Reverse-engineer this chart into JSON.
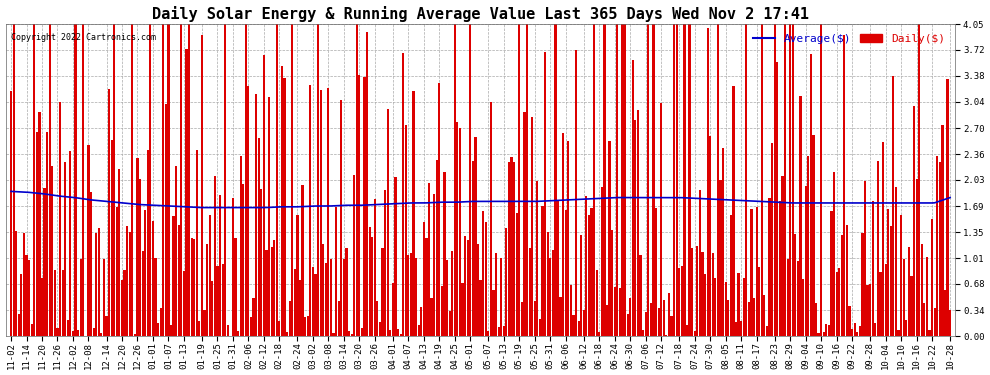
{
  "title": "Daily Solar Energy & Running Average Value Last 365 Days Wed Nov 2 17:41",
  "copyright": "Copyright 2022 Cartronics.com",
  "legend_avg": "Average($)",
  "legend_daily": "Daily($)",
  "avg_color": "#0000cc",
  "daily_color": "#dd0000",
  "bg_color": "#ffffff",
  "grid_color": "#aaaaaa",
  "ylim": [
    0.0,
    4.05
  ],
  "yticks": [
    0.0,
    0.34,
    0.68,
    1.01,
    1.35,
    1.69,
    2.03,
    2.36,
    2.7,
    3.04,
    3.38,
    3.72,
    4.05
  ],
  "title_fontsize": 11,
  "tick_fontsize": 6.5,
  "n_bars": 365,
  "date_labels": [
    "11-02",
    "11-14",
    "11-20",
    "11-26",
    "12-02",
    "12-08",
    "12-14",
    "12-20",
    "12-26",
    "01-01",
    "01-07",
    "01-13",
    "01-19",
    "01-25",
    "01-31",
    "02-06",
    "02-12",
    "02-18",
    "02-24",
    "03-02",
    "03-08",
    "03-14",
    "03-20",
    "03-26",
    "04-01",
    "04-07",
    "04-13",
    "04-19",
    "04-25",
    "05-01",
    "05-07",
    "05-13",
    "05-19",
    "05-25",
    "05-31",
    "06-06",
    "06-12",
    "06-18",
    "06-24",
    "06-30",
    "07-06",
    "07-12",
    "07-18",
    "07-24",
    "07-30",
    "08-05",
    "08-11",
    "08-17",
    "08-23",
    "08-29",
    "09-04",
    "09-10",
    "09-16",
    "09-22",
    "09-28",
    "10-04",
    "10-10",
    "10-16",
    "10-22",
    "10-28"
  ],
  "avg_line_points": [
    1.88,
    1.87,
    1.85,
    1.82,
    1.8,
    1.77,
    1.75,
    1.73,
    1.71,
    1.7,
    1.69,
    1.68,
    1.67,
    1.67,
    1.67,
    1.67,
    1.67,
    1.68,
    1.68,
    1.69,
    1.69,
    1.7,
    1.7,
    1.71,
    1.72,
    1.73,
    1.73,
    1.74,
    1.74,
    1.75,
    1.75,
    1.75,
    1.75,
    1.75,
    1.76,
    1.77,
    1.78,
    1.79,
    1.8,
    1.8,
    1.8,
    1.8,
    1.8,
    1.79,
    1.78,
    1.77,
    1.76,
    1.75,
    1.74,
    1.73,
    1.73,
    1.73,
    1.73,
    1.73,
    1.73,
    1.73,
    1.73,
    1.73,
    1.73,
    1.8
  ]
}
